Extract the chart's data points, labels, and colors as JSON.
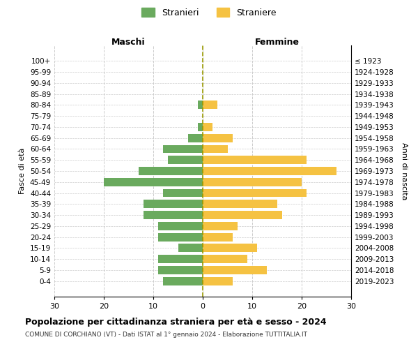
{
  "age_groups": [
    "0-4",
    "5-9",
    "10-14",
    "15-19",
    "20-24",
    "25-29",
    "30-34",
    "35-39",
    "40-44",
    "45-49",
    "50-54",
    "55-59",
    "60-64",
    "65-69",
    "70-74",
    "75-79",
    "80-84",
    "85-89",
    "90-94",
    "95-99",
    "100+"
  ],
  "birth_years": [
    "2019-2023",
    "2014-2018",
    "2009-2013",
    "2004-2008",
    "1999-2003",
    "1994-1998",
    "1989-1993",
    "1984-1988",
    "1979-1983",
    "1974-1978",
    "1969-1973",
    "1964-1968",
    "1959-1963",
    "1954-1958",
    "1949-1953",
    "1944-1948",
    "1939-1943",
    "1934-1938",
    "1929-1933",
    "1924-1928",
    "≤ 1923"
  ],
  "maschi": [
    8,
    9,
    9,
    5,
    9,
    9,
    12,
    12,
    8,
    20,
    13,
    7,
    8,
    3,
    1,
    0,
    1,
    0,
    0,
    0,
    0
  ],
  "femmine": [
    6,
    13,
    9,
    11,
    6,
    7,
    16,
    15,
    21,
    20,
    27,
    21,
    5,
    6,
    2,
    0,
    3,
    0,
    0,
    0,
    0
  ],
  "maschi_color": "#6aaa5e",
  "femmine_color": "#f5c242",
  "background_color": "#ffffff",
  "grid_color": "#cccccc",
  "title": "Popolazione per cittadinanza straniera per età e sesso - 2024",
  "subtitle": "COMUNE DI CORCHIANO (VT) - Dati ISTAT al 1° gennaio 2024 - Elaborazione TUTTITALIA.IT",
  "xlabel_left": "Maschi",
  "xlabel_right": "Femmine",
  "ylabel_left": "Fasce di età",
  "ylabel_right": "Anni di nascita",
  "legend_stranieri": "Stranieri",
  "legend_straniere": "Straniere",
  "xlim": 30
}
